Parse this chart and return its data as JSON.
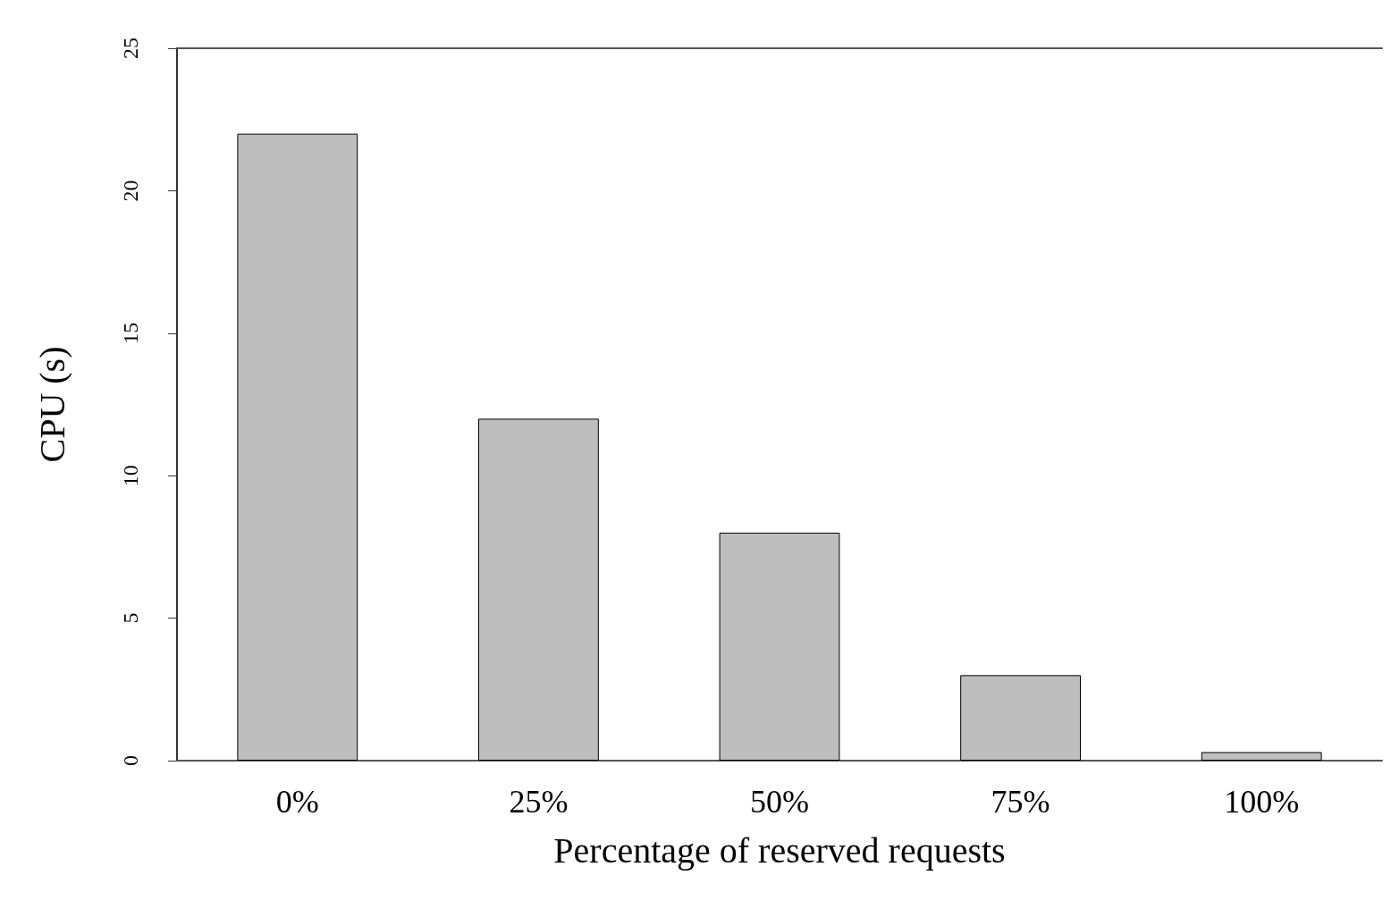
{
  "chart_data": {
    "type": "bar",
    "xlabel": "Percentage of reserved requests",
    "ylabel": "CPU (s)",
    "categories": [
      "0%",
      "25%",
      "50%",
      "75%",
      "100%"
    ],
    "values": [
      22,
      12,
      8,
      3,
      0.3
    ],
    "color": "#bebebe",
    "ylim": [
      0,
      25
    ],
    "yticks": [
      0,
      5,
      10,
      15,
      20,
      25
    ],
    "grid": false
  }
}
